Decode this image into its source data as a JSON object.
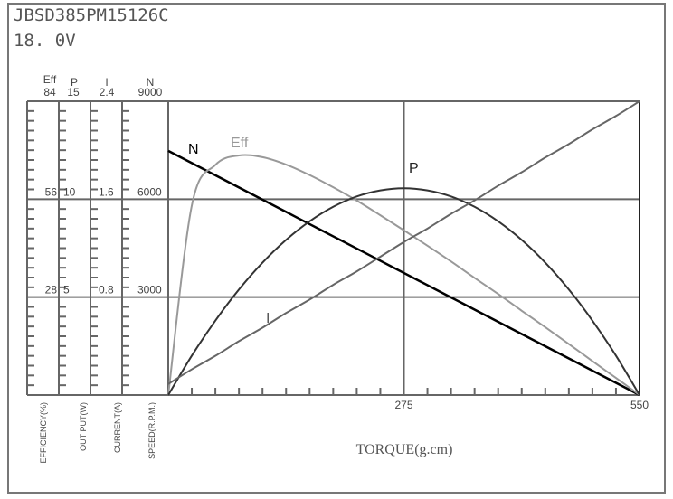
{
  "header": {
    "model": "JBSD385PM15126C",
    "voltage": "18. 0V"
  },
  "chart_data": {
    "type": "line",
    "title": "JBSD385PM15126C",
    "subtitle": "18. 0V",
    "xlabel": "TORQUE(g.cm)",
    "xlim": [
      0,
      550
    ],
    "x_ticks": [
      "275",
      "550"
    ],
    "grid": true,
    "y_axes": [
      {
        "key": "eff",
        "header": "Eff",
        "max_label": "84",
        "ticks": [
          "56",
          "28"
        ],
        "label": "EFFICIENCY(%)",
        "max": 84
      },
      {
        "key": "p",
        "header": "P",
        "max_label": "15",
        "ticks": [
          "10",
          "5"
        ],
        "label": "OUT PUT(W)",
        "max": 15
      },
      {
        "key": "i",
        "header": "I",
        "max_label": "2.4",
        "ticks": [
          "1.6",
          "0.8"
        ],
        "label": "CURRENT(A)",
        "max": 2.4
      },
      {
        "key": "n",
        "header": "N",
        "max_label": "9000",
        "ticks": [
          "6000",
          "3000"
        ],
        "label": "SPEED(R.P.M.)",
        "max": 9000
      }
    ],
    "x": [
      0,
      27.5,
      55,
      82.5,
      110,
      137.5,
      165,
      192.5,
      220,
      247.5,
      275,
      302.5,
      330,
      357.5,
      385,
      412.5,
      440,
      467.5,
      495,
      522.5,
      550
    ],
    "series": [
      {
        "name": "N",
        "axis": "n",
        "color": "#000000",
        "values": [
          7480,
          7106,
          6732,
          6358,
          5984,
          5610,
          5236,
          4862,
          4488,
          4114,
          3740,
          3366,
          2992,
          2618,
          2244,
          1870,
          1496,
          1122,
          748,
          374,
          0
        ]
      },
      {
        "name": "Eff",
        "axis": "eff",
        "color": "#999999",
        "values": [
          0,
          54.2,
          65.8,
          68.5,
          68.0,
          65.9,
          62.9,
          59.4,
          55.6,
          51.4,
          47.1,
          42.7,
          38.2,
          33.5,
          28.9,
          24.1,
          19.4,
          14.6,
          9.7,
          4.9,
          0
        ]
      },
      {
        "name": "P",
        "axis": "p",
        "color": "#333333",
        "values": [
          0,
          2.01,
          3.8,
          5.39,
          6.76,
          7.92,
          8.87,
          9.61,
          10.14,
          10.45,
          10.56,
          10.45,
          10.14,
          9.61,
          8.87,
          7.92,
          6.76,
          5.39,
          3.8,
          2.01,
          0
        ]
      },
      {
        "name": "I",
        "axis": "i",
        "color": "#666666",
        "values": [
          0.09,
          0.21,
          0.32,
          0.44,
          0.55,
          0.67,
          0.78,
          0.9,
          1.01,
          1.13,
          1.25,
          1.36,
          1.48,
          1.59,
          1.71,
          1.82,
          1.94,
          2.05,
          2.17,
          2.28,
          2.4
        ]
      }
    ]
  }
}
